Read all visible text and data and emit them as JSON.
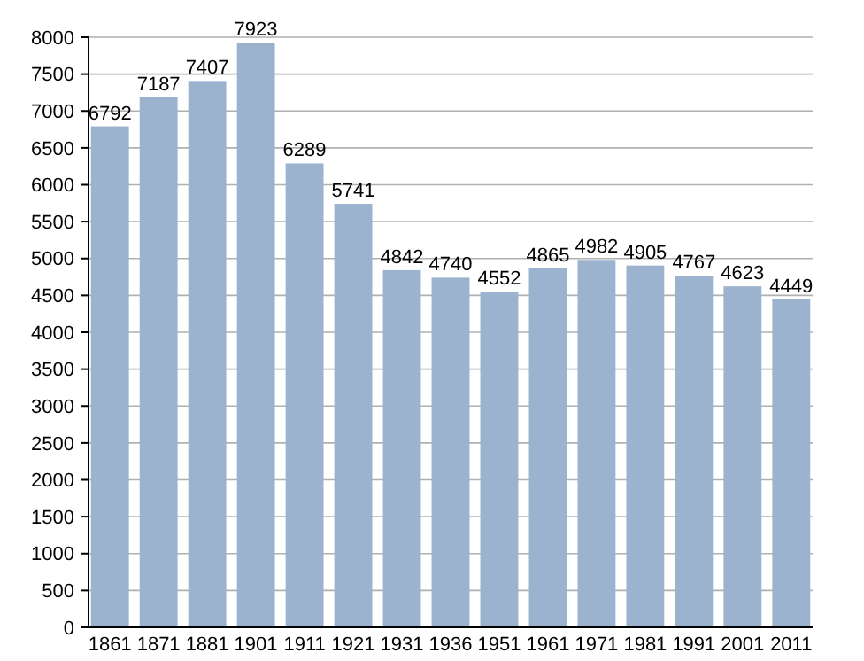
{
  "chart_data": {
    "type": "bar",
    "categories": [
      "1861",
      "1871",
      "1881",
      "1901",
      "1911",
      "1921",
      "1931",
      "1936",
      "1951",
      "1961",
      "1971",
      "1981",
      "1991",
      "2001",
      "2011"
    ],
    "values": [
      6792,
      7187,
      7407,
      7923,
      6289,
      5741,
      4842,
      4740,
      4552,
      4865,
      4982,
      4905,
      4767,
      4623,
      4449
    ],
    "color": "#9bb3cf",
    "ylim": [
      0,
      8000
    ],
    "yticks": [
      0,
      500,
      1000,
      1500,
      2000,
      2500,
      3000,
      3500,
      4000,
      4500,
      5000,
      5500,
      6000,
      6500,
      7000,
      7500,
      8000
    ],
    "grid": "y",
    "data_labels": true
  }
}
